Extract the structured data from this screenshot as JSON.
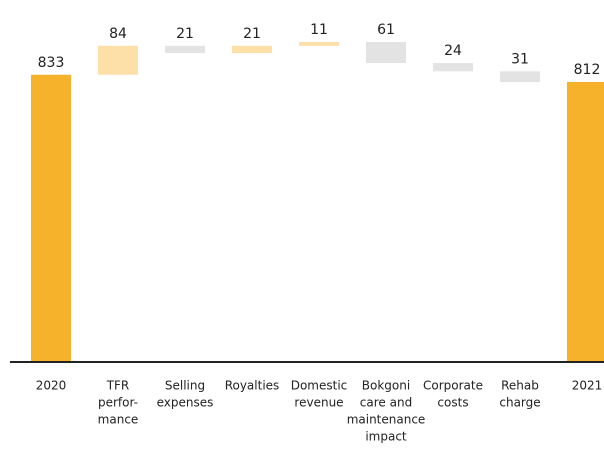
{
  "chart_data": {
    "type": "waterfall",
    "categories": [
      [
        "2020"
      ],
      [
        "TFR",
        "perfor-",
        "mance"
      ],
      [
        "Selling",
        "expenses"
      ],
      [
        "Royalties"
      ],
      [
        "Domestic",
        "revenue"
      ],
      [
        "Bokgoni",
        "care and",
        "maintenance",
        "impact"
      ],
      [
        "Corporate",
        "costs"
      ],
      [
        "Rehab",
        "charge"
      ],
      [
        "2021"
      ]
    ],
    "values": [
      833,
      84,
      -21,
      21,
      11,
      -61,
      -24,
      -31,
      812
    ],
    "value_labels": [
      "833",
      "84",
      "21",
      "21",
      "11",
      "61",
      "24",
      "31",
      "812"
    ],
    "measure": [
      "total",
      "relative",
      "relative",
      "relative",
      "relative",
      "relative",
      "relative",
      "relative",
      "total"
    ],
    "colors": [
      "#f7b22c",
      "#fddfa8",
      "#e3e3e3",
      "#fddfa8",
      "#fddfa8",
      "#e3e3e3",
      "#e3e3e3",
      "#e3e3e3",
      "#f7b22c"
    ]
  }
}
